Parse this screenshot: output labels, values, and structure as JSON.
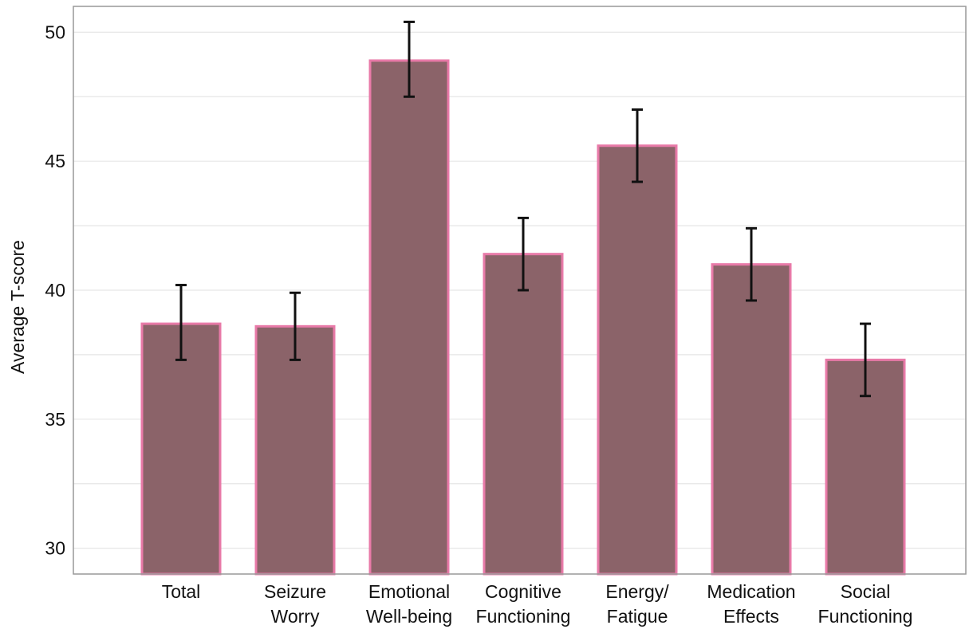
{
  "chart_data": {
    "type": "bar",
    "ylabel": "Average T-score",
    "ylim": [
      29,
      51
    ],
    "yticks": [
      30,
      35,
      40,
      45,
      50
    ],
    "grid": true,
    "categories": [
      [
        "Total"
      ],
      [
        "Seizure",
        "Worry"
      ],
      [
        "Emotional",
        "Well-being"
      ],
      [
        "Cognitive",
        "Functioning"
      ],
      [
        "Energy/",
        "Fatigue"
      ],
      [
        "Medication",
        "Effects"
      ],
      [
        "Social",
        "Functioning"
      ]
    ],
    "values": [
      38.7,
      38.6,
      48.9,
      41.4,
      45.6,
      41.0,
      37.3
    ],
    "error_low": [
      37.3,
      37.3,
      47.5,
      40.0,
      44.2,
      39.6,
      35.9
    ],
    "error_high": [
      40.2,
      39.9,
      50.4,
      42.8,
      47.0,
      42.4,
      38.7
    ],
    "colors": {
      "bar_fill": "#8b6369",
      "bar_stroke": "#e87aa8",
      "error_bar": "#111111",
      "grid": "#e6e6e6",
      "frame": "#999999"
    }
  }
}
